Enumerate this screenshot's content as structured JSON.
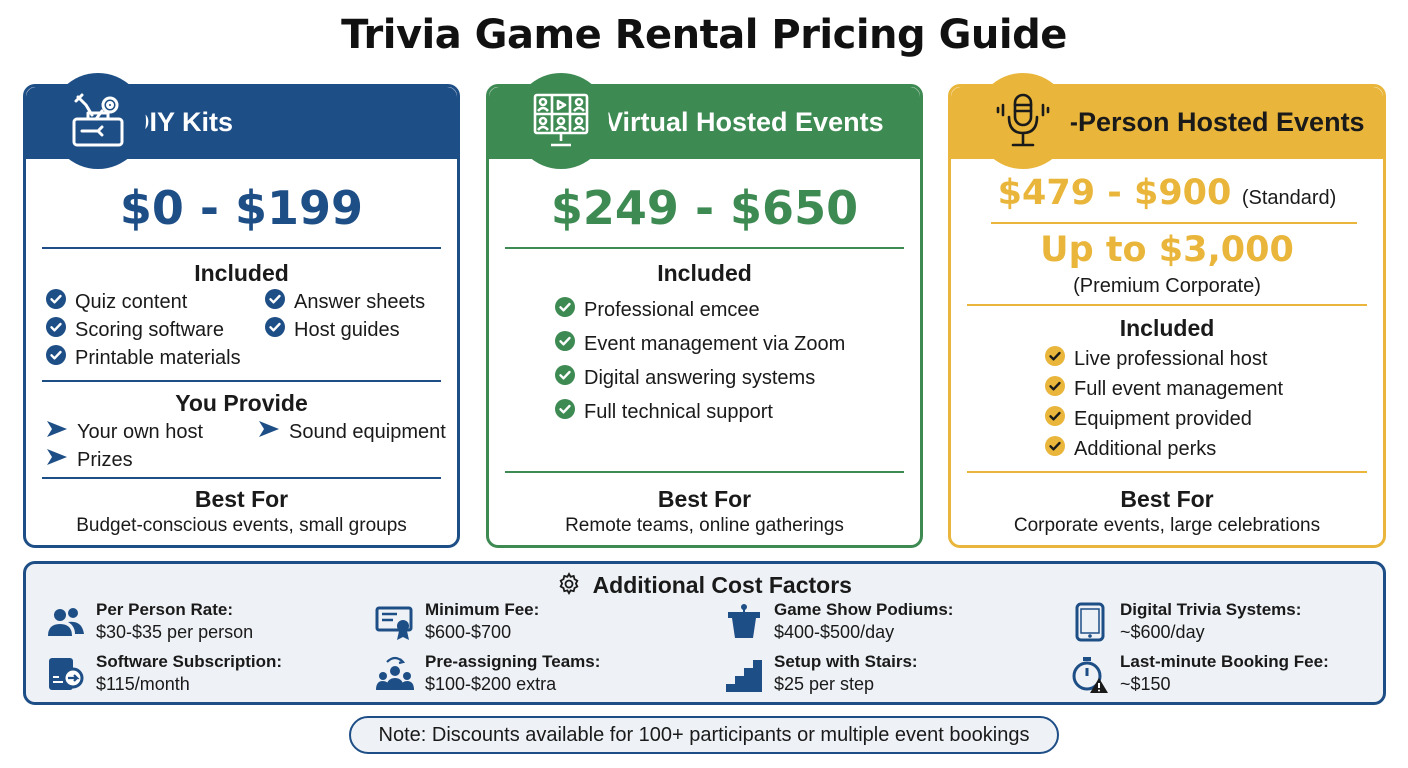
{
  "title": "Trivia Game Rental Pricing Guide",
  "colors": {
    "blue": "#1e4e86",
    "green": "#3e8a53",
    "gold": "#e9b63b",
    "panel": "#eef2f6"
  },
  "diy": {
    "icon": "toolbox-icon",
    "title": "DIY Kits",
    "price": "$0 - $199",
    "included_heading": "Included",
    "included": [
      "Quiz content",
      "Answer sheets",
      "Scoring software",
      "Host guides",
      "Printable materials"
    ],
    "provide_heading": "You Provide",
    "provide": [
      "Your own host",
      "Sound equipment",
      "Prizes"
    ],
    "best_heading": "Best For",
    "best": "Budget-conscious events, small groups"
  },
  "virtual": {
    "icon": "video-call-monitor-icon",
    "title": "Virtual Hosted Events",
    "price": "$249 - $650",
    "included_heading": "Included",
    "included": [
      "Professional emcee",
      "Event management via Zoom",
      "Digital answering systems",
      "Full technical support"
    ],
    "best_heading": "Best For",
    "best": "Remote teams, online gatherings"
  },
  "inperson": {
    "icon": "microphone-icon",
    "title": "In-Person Hosted Events",
    "price": "$479 - $900",
    "price_note": "(Standard)",
    "premium_price": "Up to $3,000",
    "premium_note": "(Premium Corporate)",
    "included_heading": "Included",
    "included": [
      "Live professional host",
      "Full event management",
      "Equipment provided",
      "Additional perks"
    ],
    "best_heading": "Best For",
    "best": "Corporate events, large celebrations"
  },
  "additional": {
    "icon": "gear-icon",
    "title": "Additional Cost Factors",
    "factors": [
      {
        "icon": "people-icon",
        "label": "Per Person Rate:",
        "value": "$30-$35 per person"
      },
      {
        "icon": "certificate-icon",
        "label": "Minimum Fee:",
        "value": "$600-$700"
      },
      {
        "icon": "podium-icon",
        "label": "Game Show Podiums:",
        "value": "$400-$500/day"
      },
      {
        "icon": "tablet-icon",
        "label": "Digital Trivia Systems:",
        "value": "~$600/day"
      },
      {
        "icon": "subscription-icon",
        "label": "Software Subscription:",
        "value": "$115/month"
      },
      {
        "icon": "team-assign-icon",
        "label": "Pre-assigning Teams:",
        "value": "$100-$200 extra"
      },
      {
        "icon": "stairs-icon",
        "label": "Setup with Stairs:",
        "value": "$25 per step"
      },
      {
        "icon": "stopwatch-alert-icon",
        "label": "Last-minute Booking Fee:",
        "value": "~$150"
      }
    ]
  },
  "note": "Note: Discounts available for 100+ participants or multiple event bookings"
}
